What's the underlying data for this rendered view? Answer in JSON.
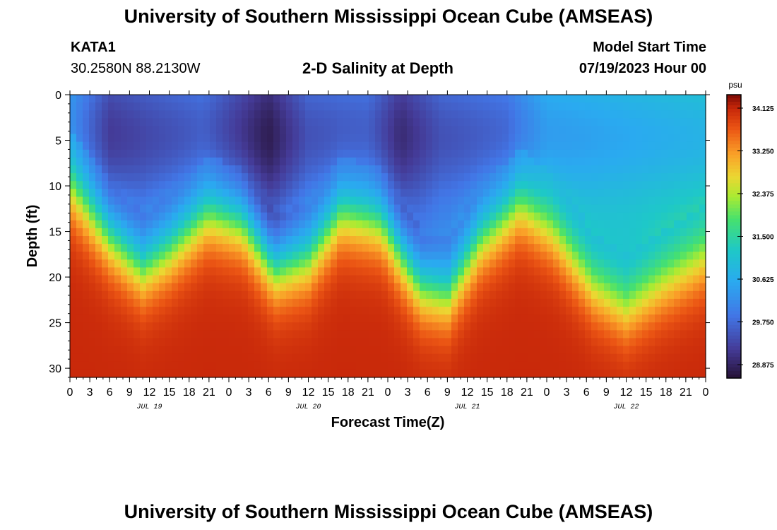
{
  "page": {
    "title": "University of Southern Mississippi Ocean Cube (AMSEAS)",
    "footer_title": "University of Southern Mississippi Ocean Cube (AMSEAS)",
    "station": "KATA1",
    "coords": "30.2580N  88.2130W",
    "plot_title": "2-D Salinity at Depth",
    "model_start_label": "Model Start Time",
    "model_start_value": "07/19/2023 Hour 00"
  },
  "chart_data": {
    "type": "heatmap",
    "title": "2-D Salinity at Depth",
    "xlabel": "Forecast Time(Z)",
    "ylabel": "Depth (ft)",
    "x_hours_range": [
      0,
      96
    ],
    "x_tick_labels": [
      "0",
      "3",
      "6",
      "9",
      "12",
      "15",
      "18",
      "21",
      "0",
      "3",
      "6",
      "9",
      "12",
      "15",
      "18",
      "21",
      "0",
      "3",
      "6",
      "9",
      "12",
      "15",
      "18",
      "21",
      "0",
      "3",
      "6",
      "9",
      "12",
      "15",
      "18",
      "21",
      "0"
    ],
    "date_labels": [
      {
        "hour": 12,
        "label": "JUL 19"
      },
      {
        "hour": 36,
        "label": "JUL 20"
      },
      {
        "hour": 60,
        "label": "JUL 21"
      },
      {
        "hour": 84,
        "label": "JUL 22"
      }
    ],
    "y_range": [
      0,
      31
    ],
    "y_ticks": [
      0,
      5,
      10,
      15,
      20,
      25,
      30
    ],
    "colorbar": {
      "units": "psu",
      "min": 28.6,
      "max": 34.4,
      "ticks": [
        "34.125",
        "33.250",
        "32.375",
        "31.500",
        "30.625",
        "29.750",
        "28.875"
      ],
      "tick_values": [
        34.125,
        33.25,
        32.375,
        31.5,
        30.625,
        29.75,
        28.875
      ]
    },
    "halocline_depth_ft": [
      {
        "hour": 0,
        "depth": 10
      },
      {
        "hour": 6,
        "depth": 15.5
      },
      {
        "hour": 11,
        "depth": 19
      },
      {
        "hour": 15,
        "depth": 17
      },
      {
        "hour": 21,
        "depth": 13
      },
      {
        "hour": 26,
        "depth": 14
      },
      {
        "hour": 31,
        "depth": 19
      },
      {
        "hour": 36,
        "depth": 18
      },
      {
        "hour": 41,
        "depth": 13
      },
      {
        "hour": 47,
        "depth": 14
      },
      {
        "hour": 53,
        "depth": 21
      },
      {
        "hour": 57,
        "depth": 22
      },
      {
        "hour": 62,
        "depth": 16
      },
      {
        "hour": 68,
        "depth": 12
      },
      {
        "hour": 73,
        "depth": 15
      },
      {
        "hour": 79,
        "depth": 21
      },
      {
        "hour": 84,
        "depth": 23.5
      },
      {
        "hour": 89,
        "depth": 21
      },
      {
        "hour": 96,
        "depth": 18
      }
    ],
    "surface_salinity_psu": [
      {
        "hour": 0,
        "value": 30.3
      },
      {
        "hour": 6,
        "value": 29.4
      },
      {
        "hour": 12,
        "value": 29.6
      },
      {
        "hour": 20,
        "value": 29.8
      },
      {
        "hour": 30,
        "value": 29.0
      },
      {
        "hour": 36,
        "value": 29.7
      },
      {
        "hour": 45,
        "value": 29.8
      },
      {
        "hour": 50,
        "value": 29.2
      },
      {
        "hour": 56,
        "value": 29.7
      },
      {
        "hour": 66,
        "value": 29.9
      },
      {
        "hour": 72,
        "value": 30.6
      },
      {
        "hour": 84,
        "value": 30.8
      },
      {
        "hour": 96,
        "value": 31.0
      }
    ],
    "bottom_salinity_psu": 34.1
  }
}
